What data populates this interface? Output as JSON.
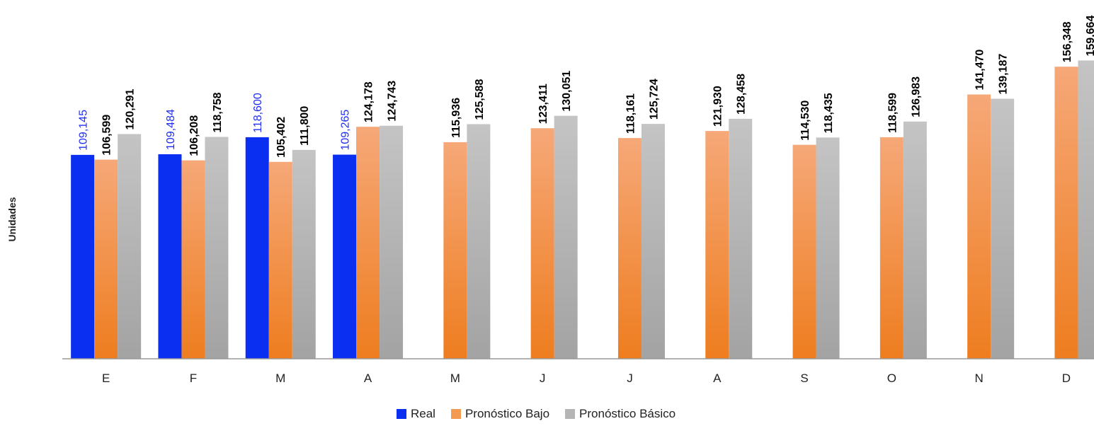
{
  "chart_data": {
    "type": "bar",
    "ylabel": "Unidades",
    "ylim": [
      0,
      160000
    ],
    "grid": false,
    "legend_position": "bottom",
    "categories": [
      "E",
      "F",
      "M",
      "A",
      "M",
      "J",
      "J",
      "A",
      "S",
      "O",
      "N",
      "D"
    ],
    "series": [
      {
        "name": "Real",
        "color": "#0a2ff0",
        "values": [
          109145,
          109484,
          118600,
          109265,
          null,
          null,
          null,
          null,
          null,
          null,
          null,
          null
        ],
        "labels": [
          "109,145",
          "109,484",
          "118,600",
          "109,265",
          "",
          "",
          "",
          "",
          "",
          "",
          "",
          ""
        ]
      },
      {
        "name": "Pronóstico Bajo",
        "color": "#f39a52",
        "values": [
          106599,
          106208,
          105402,
          124178,
          115936,
          123411,
          118161,
          121930,
          114530,
          118599,
          141470,
          156348
        ],
        "labels": [
          "106,599",
          "106,208",
          "105,402",
          "124,178",
          "115,936",
          "123,411",
          "118,161",
          "121,930",
          "114,530",
          "118,599",
          "141,470",
          "156,348"
        ]
      },
      {
        "name": "Pronóstico Básico",
        "color": "#b5b5b5",
        "values": [
          120291,
          118758,
          111800,
          124743,
          125588,
          130051,
          125724,
          128458,
          118435,
          126983,
          139187,
          159664
        ],
        "labels": [
          "120,291",
          "118,758",
          "111,800",
          "124,743",
          "125,588",
          "130,051",
          "125,724",
          "128,458",
          "118,435",
          "126,983",
          "139,187",
          "159,664"
        ]
      }
    ]
  }
}
